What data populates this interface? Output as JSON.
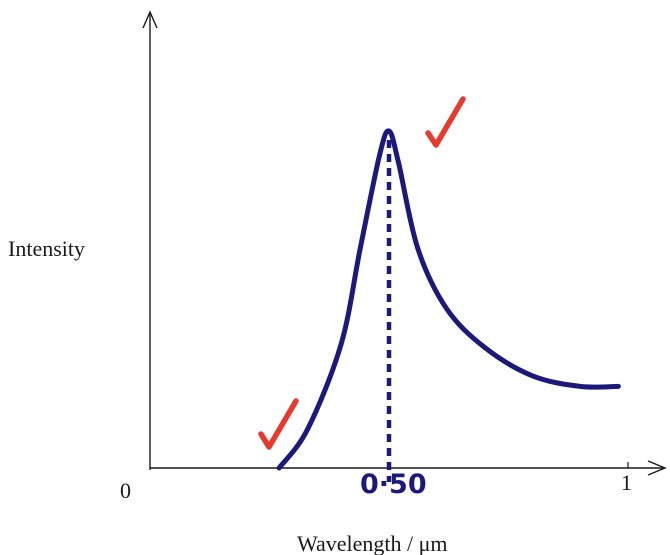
{
  "axes": {
    "y_label": "Intensity",
    "x_label": "Wavelength / μm",
    "origin_label": "0",
    "x_end_label": "1"
  },
  "annotation": {
    "peak_value": "0·50"
  },
  "colors": {
    "axis": "#1a1a1a",
    "curve": "#1b1a7a",
    "tick_mark": "#e63a2e"
  },
  "chart_data": {
    "type": "line",
    "title": "",
    "xlabel": "Wavelength / μm",
    "ylabel": "Intensity",
    "xlim": [
      0,
      1
    ],
    "peak_wavelength": 0.5,
    "series": [
      {
        "x": [
          0.27,
          0.33,
          0.4,
          0.44,
          0.48,
          0.5,
          0.52,
          0.56,
          0.62,
          0.7,
          0.8,
          0.9,
          0.98
        ],
        "y": [
          0.0,
          0.11,
          0.35,
          0.62,
          0.88,
          0.95,
          0.86,
          0.62,
          0.45,
          0.34,
          0.26,
          0.23,
          0.23
        ]
      }
    ]
  }
}
